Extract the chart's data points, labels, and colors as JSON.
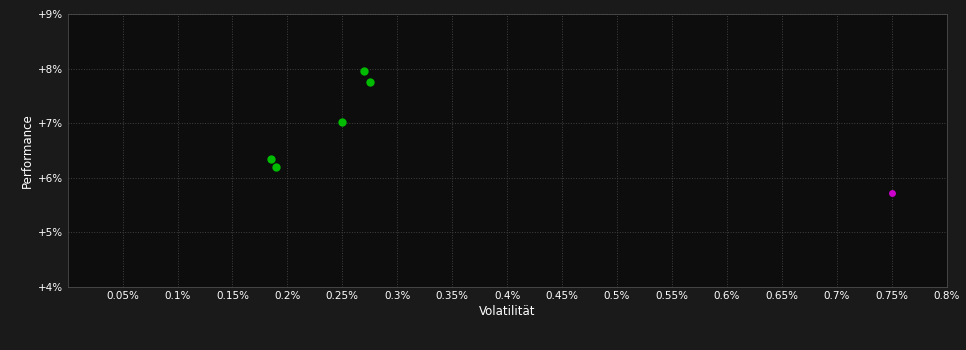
{
  "background_color": "#1a1a1a",
  "plot_bg_color": "#0d0d0d",
  "text_color": "#ffffff",
  "xlabel": "Volatilität",
  "ylabel": "Performance",
  "xlim": [
    0.0,
    0.008
  ],
  "ylim": [
    0.04,
    0.09
  ],
  "xticks": [
    0.0005,
    0.001,
    0.0015,
    0.002,
    0.0025,
    0.003,
    0.0035,
    0.004,
    0.0045,
    0.005,
    0.0055,
    0.006,
    0.0065,
    0.007,
    0.0075,
    0.008
  ],
  "xtick_labels": [
    "0.05%",
    "0.1%",
    "0.15%",
    "0.2%",
    "0.25%",
    "0.3%",
    "0.35%",
    "0.4%",
    "0.45%",
    "0.5%",
    "0.55%",
    "0.6%",
    "0.65%",
    "0.7%",
    "0.75%",
    "0.8%"
  ],
  "yticks": [
    0.04,
    0.05,
    0.06,
    0.07,
    0.08,
    0.09
  ],
  "ytick_labels": [
    "+4%",
    "+5%",
    "+6%",
    "+7%",
    "+8%",
    "+9%"
  ],
  "green_points": [
    [
      0.00185,
      0.0635
    ],
    [
      0.0019,
      0.062
    ],
    [
      0.0025,
      0.0703
    ],
    [
      0.0027,
      0.0795
    ],
    [
      0.00275,
      0.0775
    ]
  ],
  "magenta_points": [
    [
      0.0075,
      0.0572
    ]
  ],
  "green_color": "#00bb00",
  "magenta_color": "#cc00cc",
  "marker_size": 6,
  "tick_fontsize": 7.5,
  "label_fontsize": 8.5
}
